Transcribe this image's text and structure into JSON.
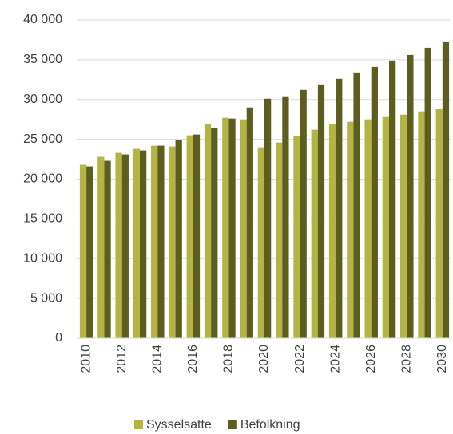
{
  "chart_data": {
    "type": "bar",
    "categories": [
      "2010",
      null,
      "2012",
      null,
      "2014",
      null,
      "2016",
      null,
      "2018",
      null,
      "2020",
      null,
      "2022",
      null,
      "2024",
      null,
      "2026",
      null,
      "2028",
      null,
      "2030"
    ],
    "series": [
      {
        "name": "Sysselsatte",
        "color": "#b3b443",
        "values": [
          21800,
          22800,
          23300,
          23800,
          24200,
          24100,
          25500,
          26900,
          27700,
          27500,
          24000,
          24600,
          25400,
          26200,
          26900,
          27200,
          27500,
          27800,
          28100,
          28500,
          28800
        ]
      },
      {
        "name": "Befolkning",
        "color": "#5c5d1e",
        "values": [
          21600,
          22300,
          23100,
          23600,
          24200,
          24900,
          25600,
          26400,
          27600,
          29000,
          30100,
          30400,
          31200,
          31900,
          32600,
          33400,
          34100,
          34900,
          35600,
          36500,
          37200
        ]
      }
    ],
    "ylim": [
      0,
      40000
    ],
    "yticks": [
      0,
      {
        "value": 5000,
        "label": "5 000"
      },
      {
        "value": 10000,
        "label": "10 000"
      },
      {
        "value": 15000,
        "label": "15 000"
      },
      {
        "value": 20000,
        "label": "20 000"
      },
      {
        "value": 25000,
        "label": "25 000"
      },
      {
        "value": 30000,
        "label": "30 000"
      },
      {
        "value": 35000,
        "label": "35 000"
      },
      {
        "value": 40000,
        "label": "40 000"
      }
    ],
    "grid": true,
    "legend": "bottom"
  }
}
